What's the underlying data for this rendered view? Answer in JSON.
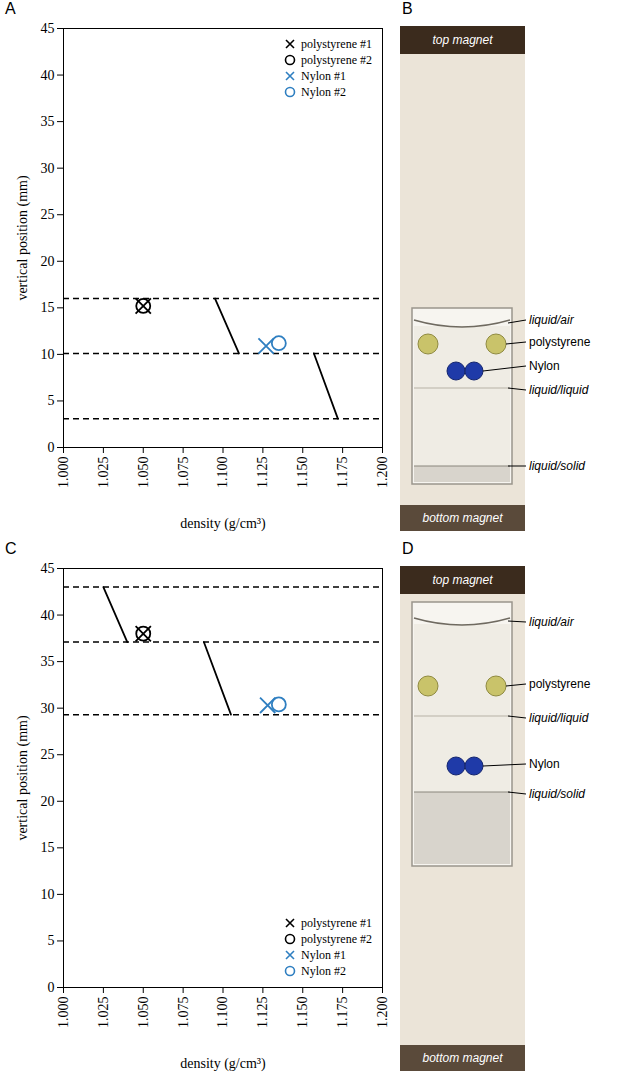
{
  "chart_data": [
    {
      "panel": "A",
      "type": "scatter",
      "xlabel": "density (g/cm³)",
      "ylabel": "vertical position (mm)",
      "xlim": [
        1.0,
        1.2
      ],
      "ylim": [
        0,
        45
      ],
      "xticks": [
        {
          "value": 1.0,
          "label": "1.000"
        },
        {
          "value": 1.025,
          "label": "1.025"
        },
        {
          "value": 1.05,
          "label": "1.050"
        },
        {
          "value": 1.075,
          "label": "1.075"
        },
        {
          "value": 1.1,
          "label": "1.100"
        },
        {
          "value": 1.125,
          "label": "1.125"
        },
        {
          "value": 1.15,
          "label": "1.150"
        },
        {
          "value": 1.175,
          "label": "1.175"
        },
        {
          "value": 1.2,
          "label": "1.200"
        }
      ],
      "yticks": [
        0,
        5,
        10,
        15,
        20,
        25,
        30,
        35,
        40,
        45
      ],
      "grid": false,
      "legend": "upper right",
      "series": [
        {
          "name": "polystyrene #1",
          "color": "#000000",
          "marker": "x",
          "x": [
            1.05
          ],
          "values": [
            15.2
          ]
        },
        {
          "name": "polystyrene #2",
          "color": "#000000",
          "marker": "circle",
          "x": [
            1.05
          ],
          "values": [
            15.2
          ]
        },
        {
          "name": "Nylon #1",
          "color": "#2f7fc1",
          "marker": "x",
          "x": [
            1.127
          ],
          "values": [
            10.9
          ]
        },
        {
          "name": "Nylon #2",
          "color": "#2f7fc1",
          "marker": "circle",
          "x": [
            1.135
          ],
          "values": [
            11.2
          ]
        }
      ],
      "reference_lines": [
        {
          "y": 16,
          "color": "#000000",
          "line_style": "dashed"
        },
        {
          "y": 10.1,
          "color": "#000000",
          "line_style": "dashed"
        },
        {
          "y": 3.1,
          "color": "#000000",
          "line_style": "dashed"
        }
      ],
      "segments": [
        {
          "x": [
            1.095,
            1.11
          ],
          "y": [
            16,
            10.1
          ],
          "color": "#000000",
          "line_style": "solid"
        },
        {
          "x": [
            1.157,
            1.172
          ],
          "y": [
            10.1,
            3.1
          ],
          "color": "#000000",
          "line_style": "solid"
        }
      ]
    },
    {
      "panel": "C",
      "type": "scatter",
      "xlabel": "density (g/cm³)",
      "ylabel": "vertical position (mm)",
      "xlim": [
        1.0,
        1.2
      ],
      "ylim": [
        0,
        45
      ],
      "xticks": [
        {
          "value": 1.0,
          "label": "1.000"
        },
        {
          "value": 1.025,
          "label": "1.025"
        },
        {
          "value": 1.05,
          "label": "1.050"
        },
        {
          "value": 1.075,
          "label": "1.075"
        },
        {
          "value": 1.1,
          "label": "1.100"
        },
        {
          "value": 1.125,
          "label": "1.125"
        },
        {
          "value": 1.15,
          "label": "1.150"
        },
        {
          "value": 1.175,
          "label": "1.175"
        },
        {
          "value": 1.2,
          "label": "1.200"
        }
      ],
      "yticks": [
        0,
        5,
        10,
        15,
        20,
        25,
        30,
        35,
        40,
        45
      ],
      "grid": false,
      "legend": "lower right",
      "series": [
        {
          "name": "polystyrene #1",
          "color": "#000000",
          "marker": "x",
          "x": [
            1.05
          ],
          "values": [
            38.0
          ]
        },
        {
          "name": "polystyrene #2",
          "color": "#000000",
          "marker": "circle",
          "x": [
            1.05
          ],
          "values": [
            38.0
          ]
        },
        {
          "name": "Nylon #1",
          "color": "#2f7fc1",
          "marker": "x",
          "x": [
            1.128
          ],
          "values": [
            30.3
          ]
        },
        {
          "name": "Nylon #2",
          "color": "#2f7fc1",
          "marker": "circle",
          "x": [
            1.135
          ],
          "values": [
            30.4
          ]
        }
      ],
      "reference_lines": [
        {
          "y": 43,
          "color": "#000000",
          "line_style": "dashed"
        },
        {
          "y": 37.1,
          "color": "#000000",
          "line_style": "dashed"
        },
        {
          "y": 29.3,
          "color": "#000000",
          "line_style": "dashed"
        }
      ],
      "segments": [
        {
          "x": [
            1.025,
            1.04
          ],
          "y": [
            43,
            37.1
          ],
          "color": "#000000",
          "line_style": "solid"
        },
        {
          "x": [
            1.088,
            1.105
          ],
          "y": [
            37.1,
            29.3
          ],
          "color": "#000000",
          "line_style": "solid"
        }
      ]
    }
  ],
  "photos": [
    {
      "panel": "B",
      "top_magnet": "top magnet",
      "bottom_magnet": "bottom magnet",
      "interfaces": [
        "liquid/air",
        "liquid/liquid",
        "liquid/solid"
      ],
      "objects": [
        "polystyrene",
        "Nylon"
      ]
    },
    {
      "panel": "D",
      "top_magnet": "top magnet",
      "bottom_magnet": "bottom magnet",
      "interfaces": [
        "liquid/air",
        "liquid/liquid",
        "liquid/solid"
      ],
      "objects": [
        "polystyrene",
        "Nylon"
      ]
    }
  ]
}
